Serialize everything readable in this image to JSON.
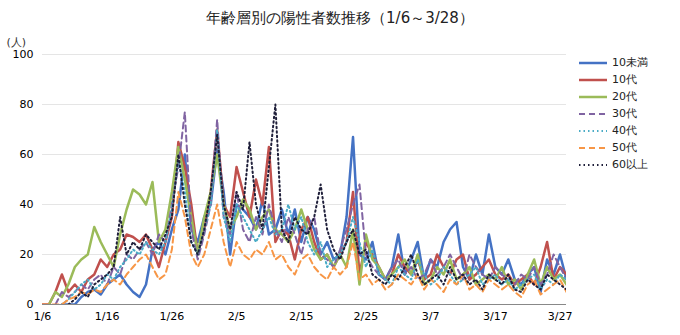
{
  "chart_data": {
    "type": "line",
    "title": "年齢層別の陽性者数推移（1/6～3/28）",
    "y_label": "(人)",
    "categories": [
      "1/6",
      null,
      null,
      null,
      null,
      null,
      null,
      null,
      null,
      null,
      "1/16",
      null,
      null,
      null,
      null,
      null,
      null,
      null,
      null,
      null,
      "1/26",
      null,
      null,
      null,
      null,
      null,
      null,
      null,
      null,
      null,
      "2/5",
      null,
      null,
      null,
      null,
      null,
      null,
      null,
      null,
      null,
      "2/15",
      null,
      null,
      null,
      null,
      null,
      null,
      null,
      null,
      null,
      "2/25",
      null,
      null,
      null,
      null,
      null,
      null,
      null,
      null,
      null,
      "3/7",
      null,
      null,
      null,
      null,
      null,
      null,
      null,
      null,
      null,
      "3/17",
      null,
      null,
      null,
      null,
      null,
      null,
      null,
      null,
      null,
      "3/27",
      null
    ],
    "ylim": [
      0,
      100
    ],
    "yticks": [
      0,
      20,
      40,
      60,
      80,
      100
    ],
    "grid": true,
    "legend": "right",
    "series": [
      {
        "name": "10未満",
        "color": "#4472C4",
        "line_style": "solid",
        "values": [
          null,
          null,
          null,
          0,
          0,
          0,
          3,
          5,
          6,
          4,
          8,
          10,
          12,
          8,
          5,
          3,
          8,
          22,
          25,
          20,
          30,
          38,
          60,
          30,
          25,
          35,
          40,
          62,
          45,
          20,
          40,
          38,
          35,
          30,
          42,
          28,
          30,
          38,
          28,
          38,
          25,
          35,
          30,
          20,
          25,
          18,
          20,
          35,
          67,
          20,
          18,
          25,
          12,
          10,
          15,
          28,
          12,
          18,
          25,
          10,
          18,
          15,
          25,
          30,
          33,
          15,
          10,
          20,
          12,
          28,
          15,
          12,
          18,
          10,
          8,
          12,
          15,
          5,
          18,
          12,
          20,
          10
        ]
      },
      {
        "name": "10代",
        "color": "#C0504D",
        "line_style": "solid",
        "values": [
          0,
          0,
          5,
          12,
          5,
          8,
          5,
          10,
          12,
          18,
          15,
          20,
          22,
          28,
          27,
          25,
          28,
          22,
          15,
          25,
          35,
          65,
          55,
          40,
          20,
          30,
          45,
          70,
          40,
          35,
          55,
          45,
          35,
          50,
          40,
          63,
          25,
          30,
          28,
          18,
          30,
          35,
          25,
          18,
          20,
          15,
          20,
          25,
          45,
          12,
          25,
          20,
          15,
          10,
          12,
          20,
          15,
          12,
          18,
          10,
          12,
          20,
          15,
          12,
          18,
          20,
          10,
          12,
          15,
          18,
          12,
          10,
          12,
          8,
          10,
          12,
          8,
          15,
          25,
          10,
          15,
          12
        ]
      },
      {
        "name": "20代",
        "color": "#9BBB59",
        "line_style": "solid",
        "values": [
          null,
          0,
          5,
          3,
          8,
          15,
          18,
          20,
          31,
          25,
          20,
          15,
          28,
          38,
          46,
          44,
          40,
          49,
          25,
          30,
          45,
          63,
          50,
          35,
          20,
          35,
          45,
          60,
          40,
          30,
          35,
          42,
          38,
          30,
          35,
          38,
          30,
          28,
          25,
          30,
          38,
          30,
          22,
          18,
          20,
          15,
          20,
          15,
          30,
          8,
          28,
          18,
          15,
          10,
          12,
          15,
          18,
          12,
          20,
          8,
          10,
          15,
          12,
          18,
          10,
          12,
          15,
          8,
          10,
          12,
          10,
          15,
          8,
          10,
          6,
          12,
          18,
          8,
          15,
          10,
          12,
          8
        ]
      },
      {
        "name": "30代",
        "color": "#8064A2",
        "line_style": "dashed",
        "values": [
          null,
          null,
          0,
          5,
          3,
          5,
          8,
          6,
          10,
          12,
          8,
          15,
          12,
          20,
          18,
          22,
          25,
          20,
          28,
          25,
          40,
          55,
          77,
          30,
          18,
          28,
          40,
          74,
          35,
          28,
          45,
          30,
          25,
          35,
          28,
          40,
          30,
          25,
          35,
          28,
          20,
          30,
          35,
          20,
          18,
          15,
          22,
          30,
          40,
          48,
          20,
          15,
          12,
          10,
          15,
          18,
          12,
          15,
          10,
          12,
          18,
          12,
          15,
          20,
          15,
          10,
          20,
          15,
          12,
          10,
          15,
          12,
          10,
          8,
          12,
          10,
          15,
          8,
          12,
          20,
          15,
          10
        ]
      },
      {
        "name": "40代",
        "color": "#4BACC6",
        "line_style": "dotted",
        "values": [
          null,
          null,
          null,
          0,
          2,
          5,
          8,
          10,
          6,
          8,
          12,
          10,
          15,
          18,
          22,
          20,
          25,
          22,
          20,
          25,
          38,
          58,
          45,
          25,
          20,
          30,
          40,
          70,
          35,
          25,
          40,
          35,
          30,
          25,
          30,
          35,
          28,
          30,
          40,
          30,
          35,
          25,
          20,
          25,
          15,
          18,
          20,
          25,
          35,
          25,
          15,
          22,
          12,
          10,
          8,
          15,
          12,
          10,
          18,
          12,
          8,
          10,
          15,
          12,
          8,
          10,
          12,
          15,
          8,
          10,
          12,
          8,
          10,
          6,
          8,
          10,
          12,
          6,
          10,
          8,
          12,
          10
        ]
      },
      {
        "name": "50代",
        "color": "#F79646",
        "line_style": "dashed",
        "values": [
          0,
          0,
          0,
          0,
          2,
          3,
          5,
          4,
          6,
          5,
          8,
          10,
          8,
          12,
          15,
          18,
          20,
          15,
          10,
          12,
          22,
          45,
          35,
          20,
          15,
          20,
          30,
          40,
          25,
          15,
          25,
          20,
          18,
          22,
          20,
          25,
          18,
          20,
          15,
          12,
          18,
          20,
          15,
          12,
          10,
          15,
          12,
          15,
          25,
          10,
          12,
          8,
          10,
          6,
          8,
          12,
          10,
          8,
          12,
          6,
          10,
          8,
          5,
          10,
          8,
          12,
          6,
          8,
          5,
          10,
          8,
          6,
          8,
          5,
          3,
          8,
          10,
          4,
          6,
          8,
          10,
          5
        ]
      },
      {
        "name": "60以上",
        "color": "#1F1F3A",
        "line_style": "dotted",
        "values": [
          null,
          null,
          null,
          null,
          0,
          2,
          5,
          3,
          8,
          10,
          12,
          15,
          35,
          20,
          25,
          22,
          28,
          25,
          22,
          28,
          35,
          60,
          40,
          25,
          20,
          30,
          45,
          68,
          40,
          30,
          45,
          38,
          65,
          40,
          30,
          55,
          80,
          30,
          25,
          35,
          30,
          28,
          35,
          48,
          30,
          22,
          18,
          25,
          30,
          20,
          22,
          12,
          10,
          8,
          12,
          10,
          15,
          20,
          12,
          8,
          10,
          12,
          8,
          15,
          10,
          12,
          8,
          10,
          6,
          12,
          10,
          8,
          12,
          6,
          5,
          10,
          8,
          6,
          12,
          10,
          8,
          6
        ]
      }
    ]
  }
}
